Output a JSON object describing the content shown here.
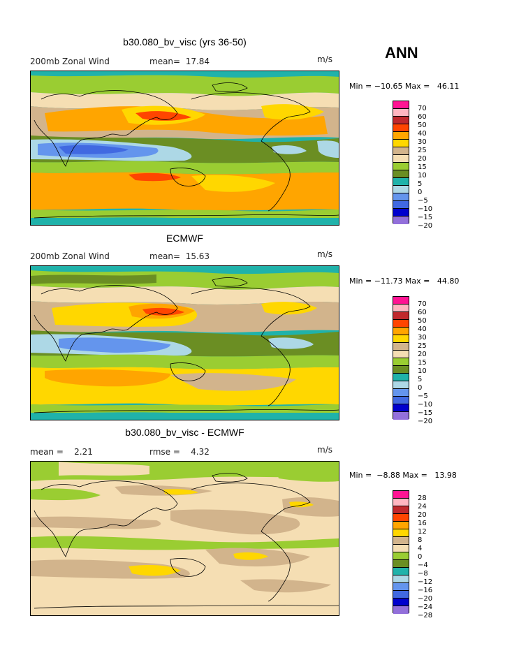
{
  "season": "ANN",
  "units": "m/s",
  "panels": [
    {
      "title": "b30.080_bv_visc (yrs 36-50)",
      "left_label": "200mb Zonal Wind",
      "stat1": "mean=  17.84",
      "stat2": "",
      "minmax": "Min = −10.65 Max =   46.11",
      "levels": [
        "70",
        "60",
        "50",
        "40",
        "30",
        "25",
        "20",
        "15",
        "10",
        "5",
        "0",
        "−5",
        "−10",
        "−15",
        "−20"
      ]
    },
    {
      "title": "ECMWF",
      "left_label": "200mb Zonal Wind",
      "stat1": "mean=  15.63",
      "stat2": "",
      "minmax": "Min = −11.73 Max =   44.80",
      "levels": [
        "70",
        "60",
        "50",
        "40",
        "30",
        "25",
        "20",
        "15",
        "10",
        "5",
        "0",
        "−5",
        "−10",
        "−15",
        "−20"
      ]
    },
    {
      "title": "b30.080_bv_visc - ECMWF",
      "left_label": "mean =    2.21",
      "stat1": "rmse =    4.32",
      "stat2": "",
      "minmax": "Min =  −8.88 Max =   13.98",
      "levels": [
        "28",
        "24",
        "20",
        "16",
        "12",
        "8",
        "4",
        "0",
        "−4",
        "−8",
        "−12",
        "−16",
        "−20",
        "−24",
        "−28"
      ]
    }
  ],
  "colorbar_colors": [
    "#ff1493",
    "#ffb6c1",
    "#c0282d",
    "#ff4500",
    "#ffa500",
    "#ffd700",
    "#d2b48c",
    "#f5deb3",
    "#9acd32",
    "#6b8e23",
    "#20b2aa",
    "#add8e6",
    "#6495ed",
    "#4169e1",
    "#0000cd",
    "#9370db"
  ]
}
